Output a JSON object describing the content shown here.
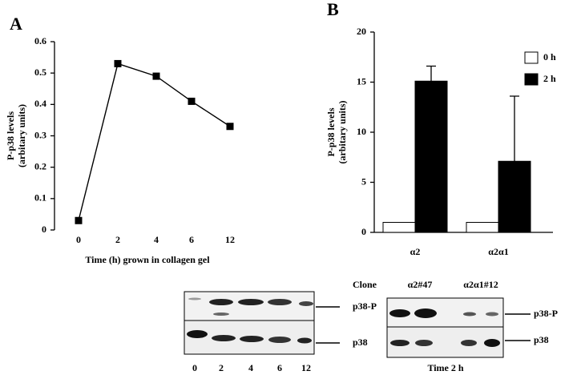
{
  "chart_data": [
    {
      "type": "line",
      "panel": "A",
      "y_label": [
        "P-p38  levels",
        "(arbitary  units)"
      ],
      "x_label": "Time  (h)  grown  in  collagen  gel",
      "categories": [
        "0",
        "2",
        "4",
        "6",
        "12"
      ],
      "series": [
        {
          "color": "#000000",
          "values": [
            0.03,
            0.53,
            0.49,
            0.41,
            0.33
          ]
        }
      ],
      "ylim": [
        0,
        0.6
      ],
      "yticks": [
        0,
        0.1,
        0.2,
        0.3,
        0.4,
        0.5,
        0.6
      ]
    },
    {
      "type": "bar",
      "panel": "B",
      "y_label": [
        "P-p38  levels",
        "(arbitary  units)"
      ],
      "categories": [
        "α2",
        "α2α1"
      ],
      "series": [
        {
          "name": "0 h",
          "color": "#ffffff",
          "values": [
            1,
            1
          ]
        },
        {
          "name": "2 h",
          "color": "#000000",
          "values": [
            15.1,
            7.1
          ],
          "errors": [
            1.5,
            6.5
          ]
        }
      ],
      "ylim": [
        0,
        20
      ],
      "yticks": [
        0,
        5,
        10,
        15,
        20
      ],
      "legend": "top-right"
    }
  ],
  "blots": [
    {
      "bands": [
        "p38-P",
        "p38"
      ],
      "lanes": [
        "0",
        "2",
        "4",
        "6",
        "12"
      ]
    },
    {
      "header": [
        "Clone",
        "α2#47",
        "α2α1#12"
      ],
      "bands": [
        "p38-P",
        "p38"
      ],
      "footer": "Time 2 h"
    }
  ]
}
